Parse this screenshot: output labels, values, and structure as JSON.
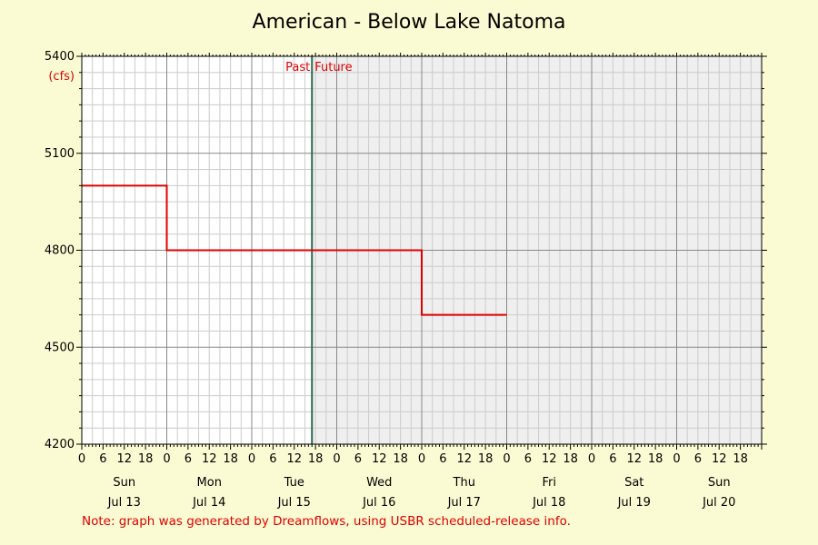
{
  "chart_data": {
    "type": "line",
    "title": "American - Below Lake Natoma",
    "ylabel": "(cfs)",
    "ylim": [
      4200,
      5400
    ],
    "y_ticks": [
      4200,
      4500,
      4800,
      5100,
      5400
    ],
    "x_start": "2025-07-13 00:00",
    "x_end": "2025-07-20 24:00",
    "hour_tick_labels": [
      "0",
      "6",
      "12",
      "18"
    ],
    "days": [
      {
        "weekday": "Sun",
        "date": "Jul 13"
      },
      {
        "weekday": "Mon",
        "date": "Jul 14"
      },
      {
        "weekday": "Tue",
        "date": "Jul 15"
      },
      {
        "weekday": "Wed",
        "date": "Jul 16"
      },
      {
        "weekday": "Thu",
        "date": "Jul 17"
      },
      {
        "weekday": "Fri",
        "date": "Jul 18"
      },
      {
        "weekday": "Sat",
        "date": "Jul 19"
      },
      {
        "weekday": "Sun",
        "date": "Jul 20"
      }
    ],
    "now": "2025-07-15 17:00",
    "past_label": "Past",
    "future_label": "Future",
    "series": [
      {
        "color": "#e00000",
        "step": true,
        "points": [
          {
            "x": "2025-07-13 00:00",
            "y": 5000
          },
          {
            "x": "2025-07-14 00:00",
            "y": 4800
          },
          {
            "x": "2025-07-16 00:00",
            "y": 4800
          },
          {
            "x": "2025-07-17 00:00",
            "y": 4600
          },
          {
            "x": "2025-07-18 00:00",
            "y": 4600
          }
        ]
      }
    ],
    "grid": true,
    "colors": {
      "background": "#fbfbd3",
      "past_area": "#ffffff",
      "future_area": "#efefef",
      "now_line": "#2e6b4f",
      "series": "#e00000",
      "grid_major": "#888888",
      "grid_minor": "#cccccc"
    }
  },
  "note": "Note: graph was generated by Dreamflows, using USBR scheduled-release info."
}
